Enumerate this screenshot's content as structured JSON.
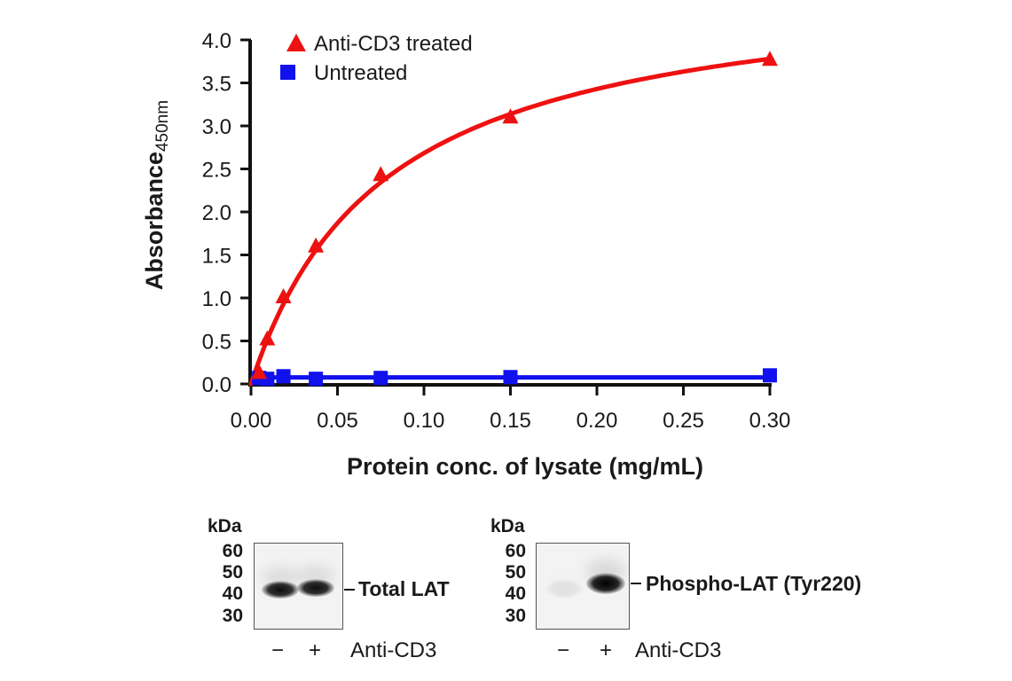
{
  "chart_data": {
    "type": "scatter",
    "title": "",
    "xlabel": "Protein conc. of lysate (mg/mL)",
    "ylabel": "Absorbance",
    "ylabel_subscript": "450nm",
    "xlim": [
      0,
      0.3
    ],
    "ylim": [
      0,
      4.0
    ],
    "x_ticks": [
      "0.00",
      "0.05",
      "0.10",
      "0.15",
      "0.20",
      "0.25",
      "0.30"
    ],
    "x_tick_values": [
      0,
      0.05,
      0.1,
      0.15,
      0.2,
      0.25,
      0.3
    ],
    "y_ticks": [
      "0.0",
      "0.5",
      "1.0",
      "1.5",
      "2.0",
      "2.5",
      "3.0",
      "3.5",
      "4.0"
    ],
    "y_tick_values": [
      0,
      0.5,
      1.0,
      1.5,
      2.0,
      2.5,
      3.0,
      3.5,
      4.0
    ],
    "grid": false,
    "legend_position": "top-left",
    "series": [
      {
        "name": "Anti-CD3 treated",
        "marker": "triangle",
        "color": "#ee1111",
        "fit": "saturation curve",
        "x": [
          0.0047,
          0.0094,
          0.01875,
          0.0375,
          0.075,
          0.15,
          0.3
        ],
        "y": [
          0.13,
          0.52,
          1.01,
          1.6,
          2.43,
          3.1,
          3.77
        ]
      },
      {
        "name": "Untreated",
        "marker": "square",
        "color": "#1111ee",
        "fit": "linear",
        "x": [
          0.0047,
          0.0094,
          0.01875,
          0.0375,
          0.075,
          0.15,
          0.3
        ],
        "y": [
          0.07,
          0.06,
          0.09,
          0.06,
          0.07,
          0.08,
          0.1
        ]
      }
    ]
  },
  "blots": [
    {
      "kda_label": "kDa",
      "mw_markers": [
        "60",
        "50",
        "40",
        "30"
      ],
      "band_label": "Total LAT",
      "lanes": [
        "−",
        "+"
      ],
      "treatment_label": "Anti-CD3",
      "band_intensity": [
        0.95,
        0.95
      ]
    },
    {
      "kda_label": "kDa",
      "mw_markers": [
        "60",
        "50",
        "40",
        "30"
      ],
      "band_label": "Phospho-LAT (Tyr220)",
      "lanes": [
        "−",
        "+"
      ],
      "treatment_label": "Anti-CD3",
      "band_intensity": [
        0.08,
        1.0
      ]
    }
  ]
}
